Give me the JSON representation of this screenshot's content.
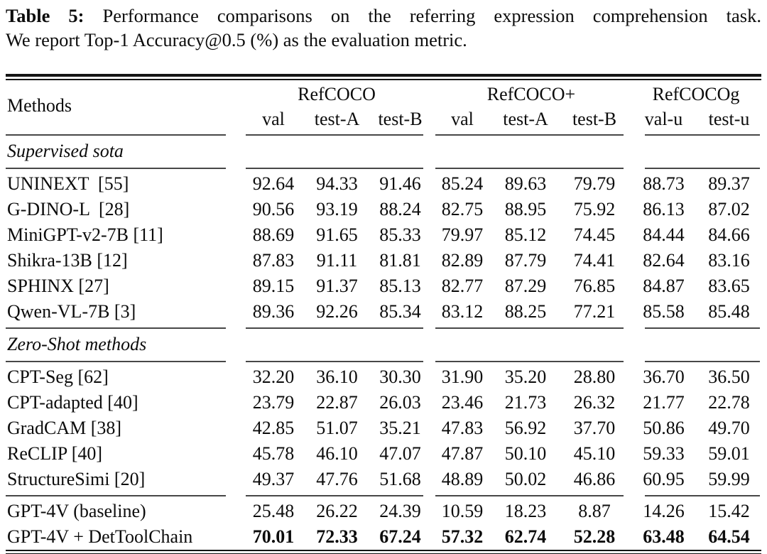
{
  "caption": {
    "label": "Table 5:",
    "line1": "Performance comparisons on the referring expression comprehension task.",
    "line2": "We report Top-1 Accuracy@0.5 (%) as the evaluation metric."
  },
  "table": {
    "methods_header": "Methods",
    "groups": [
      {
        "label": "RefCOCO",
        "cols": [
          "val",
          "test-A",
          "test-B"
        ]
      },
      {
        "label": "RefCOCO+",
        "cols": [
          "val",
          "test-A",
          "test-B"
        ]
      },
      {
        "label": "RefCOCOg",
        "cols": [
          "val-u",
          "test-u"
        ]
      }
    ],
    "sections": [
      {
        "title": "Supervised sota",
        "rows": [
          {
            "method": "UNINEXT  [55]",
            "values": [
              "92.64",
              "94.33",
              "91.46",
              "85.24",
              "89.63",
              "79.79",
              "88.73",
              "89.37"
            ],
            "bold": false
          },
          {
            "method": "G-DINO-L  [28]",
            "values": [
              "90.56",
              "93.19",
              "88.24",
              "82.75",
              "88.95",
              "75.92",
              "86.13",
              "87.02"
            ],
            "bold": false
          },
          {
            "method": "MiniGPT-v2-7B [11]",
            "values": [
              "88.69",
              "91.65",
              "85.33",
              "79.97",
              "85.12",
              "74.45",
              "84.44",
              "84.66"
            ],
            "bold": false
          },
          {
            "method": "Shikra-13B [12]",
            "values": [
              "87.83",
              "91.11",
              "81.81",
              "82.89",
              "87.79",
              "74.41",
              "82.64",
              "83.16"
            ],
            "bold": false
          },
          {
            "method": "SPHINX [27]",
            "values": [
              "89.15",
              "91.37",
              "85.13",
              "82.77",
              "87.29",
              "76.85",
              "84.87",
              "83.65"
            ],
            "bold": false
          },
          {
            "method": "Qwen-VL-7B [3]",
            "values": [
              "89.36",
              "92.26",
              "85.34",
              "83.12",
              "88.25",
              "77.21",
              "85.58",
              "85.48"
            ],
            "bold": false
          }
        ]
      },
      {
        "title": "Zero-Shot methods",
        "rows": [
          {
            "method": "CPT-Seg [62]",
            "values": [
              "32.20",
              "36.10",
              "30.30",
              "31.90",
              "35.20",
              "28.80",
              "36.70",
              "36.50"
            ],
            "bold": false
          },
          {
            "method": "CPT-adapted [40]",
            "values": [
              "23.79",
              "22.87",
              "26.03",
              "23.46",
              "21.73",
              "26.32",
              "21.77",
              "22.78"
            ],
            "bold": false
          },
          {
            "method": "GradCAM [38]",
            "values": [
              "42.85",
              "51.07",
              "35.21",
              "47.83",
              "56.92",
              "37.70",
              "50.86",
              "49.70"
            ],
            "bold": false
          },
          {
            "method": "ReCLIP [40]",
            "values": [
              "45.78",
              "46.10",
              "47.07",
              "47.87",
              "50.10",
              "45.10",
              "59.33",
              "59.01"
            ],
            "bold": false
          },
          {
            "method": "StructureSimi [20]",
            "values": [
              "49.37",
              "47.76",
              "51.68",
              "48.89",
              "50.02",
              "46.86",
              "60.95",
              "59.99"
            ],
            "bold": false
          }
        ]
      },
      {
        "title": "",
        "rows": [
          {
            "method": "GPT-4V (baseline)",
            "values": [
              "25.48",
              "26.22",
              "24.39",
              "10.59",
              "18.23",
              "8.87",
              "14.26",
              "15.42"
            ],
            "bold": false
          },
          {
            "method": "GPT-4V + DetToolChain",
            "values": [
              "70.01",
              "72.33",
              "67.24",
              "57.32",
              "62.74",
              "52.28",
              "63.48",
              "64.54"
            ],
            "bold": true
          }
        ]
      }
    ]
  }
}
